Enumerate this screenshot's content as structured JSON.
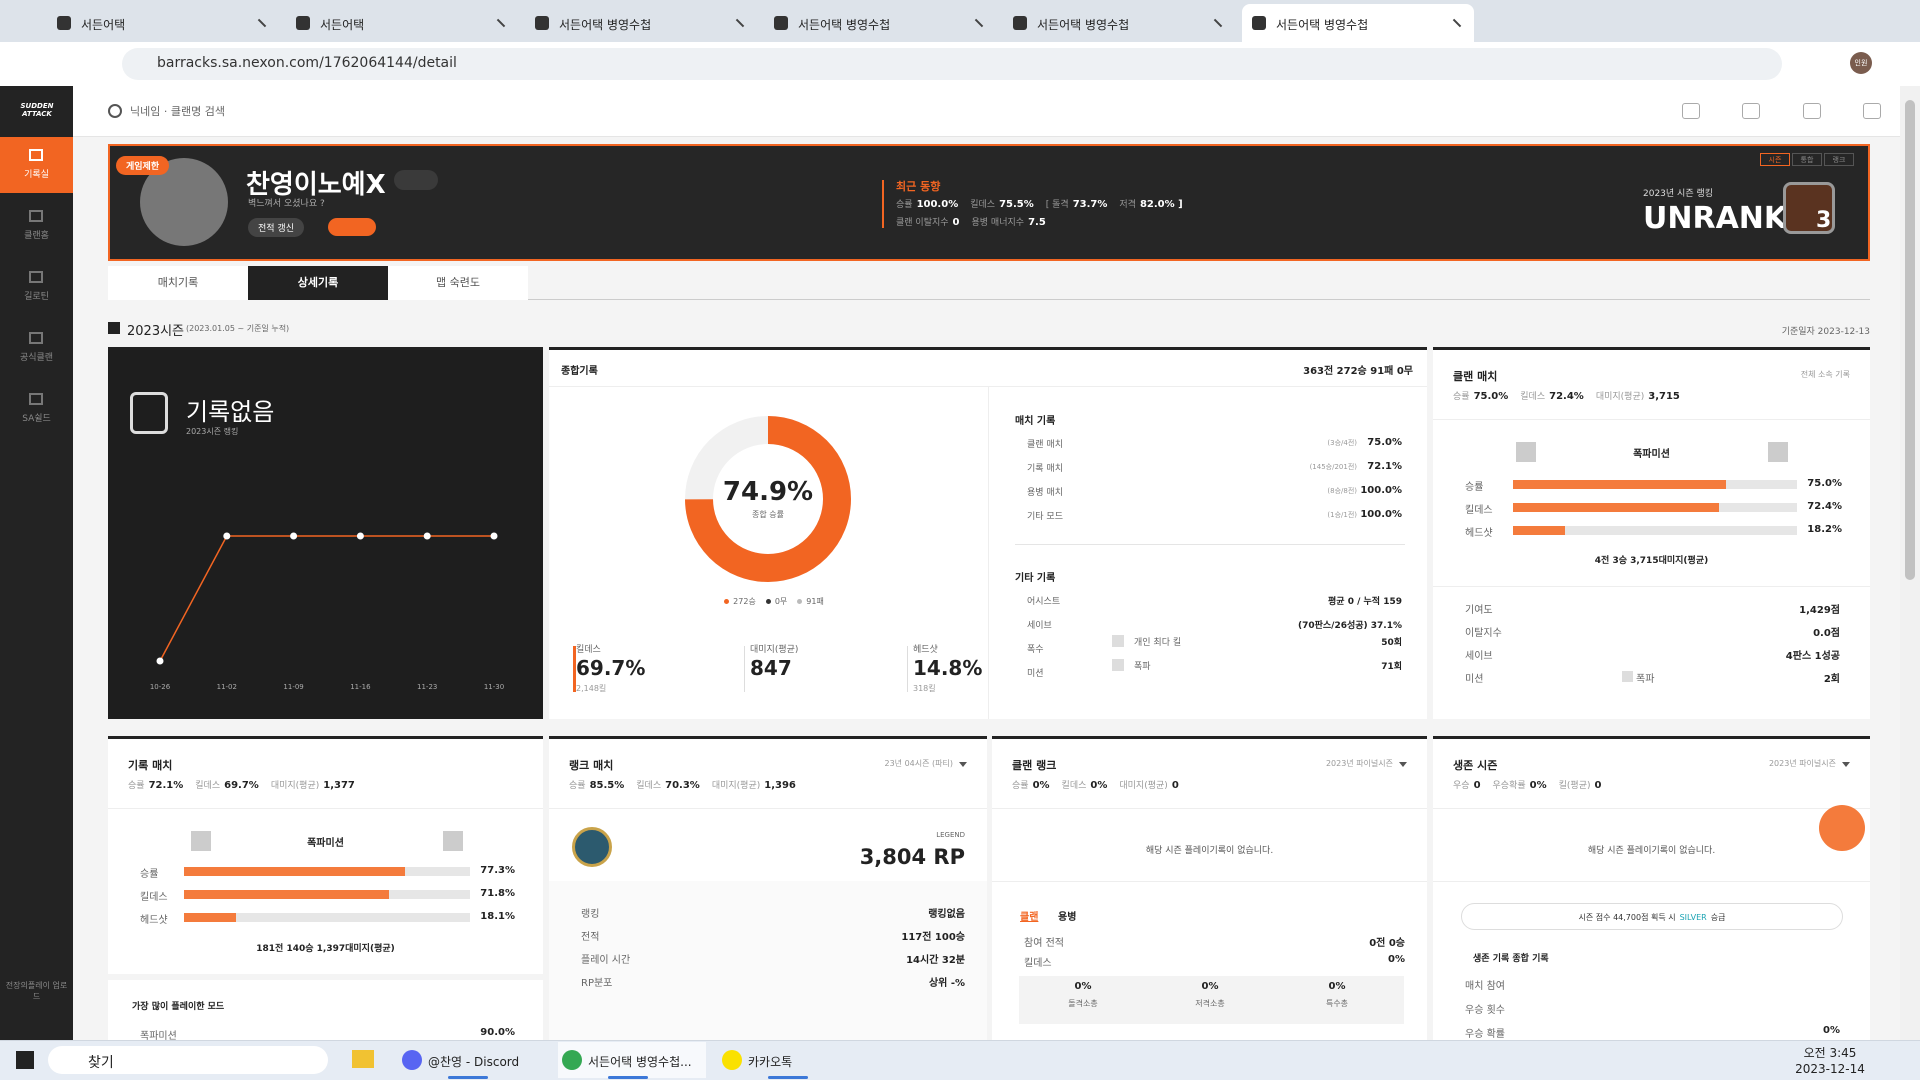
{
  "browser": {
    "tabs": [
      "서든어택",
      "서든어택",
      "서든어택 병영수첩",
      "서든어택 병영수첩",
      "서든어택 병영수첩",
      "서든어택 병영수첩"
    ],
    "url": "barracks.sa.nexon.com/1762064144/detail",
    "profile": "인원"
  },
  "sidebar": {
    "logo": "SUDDEN ATTACK",
    "items": [
      "기록실",
      "클랜홈",
      "길로틴",
      "공식클랜",
      "SA쉴드"
    ],
    "upload": "전장의플레이 업로드"
  },
  "header": {
    "search": "닉네임 · 클랜명 검색"
  },
  "profile": {
    "badge": "게임제한",
    "nickname": "찬영이노예X",
    "status": "벽느껴서 오셨나요 ?",
    "refresh": "전적 갱신",
    "trend": {
      "title": "최근 동향",
      "line1": [
        {
          "label": "승률",
          "value": "100.0%"
        },
        {
          "label": "킬데스",
          "value": "75.5%"
        },
        {
          "label": "[ 돌격",
          "value": "73.7%"
        },
        {
          "label": "저격",
          "value": "82.0% ]"
        }
      ],
      "line2": [
        {
          "label": "클랜 이탈지수",
          "value": "0"
        },
        {
          "label": "용병 매너지수",
          "value": "7.5"
        }
      ]
    },
    "season_tabs": [
      "시즌",
      "통합",
      "랭크"
    ],
    "ranking_label": "2023년 시즌 랭킹",
    "rank": "UNRANK",
    "rank_level": "3"
  },
  "tabs": [
    "매치기록",
    "상세기록",
    "맵 숙련도"
  ],
  "season": {
    "title": "2023시즌",
    "period": "(2023.01.05 ~ 기준일 누적)",
    "as_of": "기준일자 2023-12-13"
  },
  "ranking_card": {
    "title": "기록없음",
    "subtitle": "2023시즌 랭킹",
    "chart": {
      "type": "line",
      "x": [
        "10-26",
        "11-02",
        "11-09",
        "11-16",
        "11-23",
        "11-30"
      ],
      "values": [
        10,
        100,
        100,
        100,
        100,
        100
      ],
      "ylim": [
        10,
        100
      ],
      "color": "#f26522"
    }
  },
  "overall": {
    "title": "종합기록",
    "summary": "363전 272승 91패 0무",
    "win_rate": {
      "value": 74.9,
      "label": "74.9%"
    },
    "win_rate_label": "종합 승률",
    "legend": [
      "272승",
      "0무",
      "91패"
    ],
    "stats": [
      {
        "label": "킬데스",
        "value": "69.7%",
        "sub": "2,148킬"
      },
      {
        "label": "대미지(평균)",
        "value": "847"
      },
      {
        "label": "헤드샷",
        "value": "14.8%",
        "sub": "318킬"
      }
    ],
    "match_title": "매치 기록",
    "match_rows": [
      {
        "label": "클랜 매치",
        "detail": "(3승/4전)",
        "value": "75.0%"
      },
      {
        "label": "기록 매치",
        "detail": "(145승/201전)",
        "value": "72.1%"
      },
      {
        "label": "용병 매치",
        "detail": "(8승/8전)",
        "value": "100.0%"
      },
      {
        "label": "기타 모드",
        "detail": "(1승/1전)",
        "value": "100.0%"
      }
    ],
    "other_title": "기타 기록",
    "other_rows": [
      {
        "label": "어시스트",
        "value": "평균 0 / 누적 159"
      },
      {
        "label": "세이브",
        "value": "(70판스/26성공) 37.1%"
      },
      {
        "label": "폭수",
        "detail": "개인 최다 킬",
        "value": "50회"
      },
      {
        "label": "미션",
        "detail": "폭파",
        "value": "71회"
      }
    ]
  },
  "clan_match": {
    "title": "클랜 매치",
    "scope": "전체 소속 기록",
    "stats": [
      {
        "label": "승률",
        "value": "75.0%"
      },
      {
        "label": "킬데스",
        "value": "72.4%"
      },
      {
        "label": "대미지(평균)",
        "value": "3,715"
      }
    ],
    "mode": "폭파미션",
    "bars": [
      {
        "label": "승률",
        "value": 75.0,
        "value_label": "75.0%"
      },
      {
        "label": "킬데스",
        "value": 72.4,
        "value_label": "72.4%"
      },
      {
        "label": "헤드샷",
        "value": 18.2,
        "value_label": "18.2%"
      }
    ],
    "summary": "4전 3승 3,715대미지(평균)",
    "rows": [
      {
        "label": "기여도",
        "value": "1,429점"
      },
      {
        "label": "이탈지수",
        "value": "0.0점"
      },
      {
        "label": "세이브",
        "value": "4판스 1성공"
      },
      {
        "label": "미션",
        "detail": "폭파",
        "value": "2회"
      }
    ]
  },
  "record_match": {
    "title": "기록 매치",
    "stats": [
      {
        "label": "승률",
        "value": "72.1%"
      },
      {
        "label": "킬데스",
        "value": "69.7%"
      },
      {
        "label": "대미지(평균)",
        "value": "1,377"
      }
    ],
    "mode": "폭파미션",
    "bars": [
      {
        "label": "승률",
        "value": 77.3,
        "value_label": "77.3%"
      },
      {
        "label": "킬데스",
        "value": 71.8,
        "value_label": "71.8%"
      },
      {
        "label": "헤드샷",
        "value": 18.1,
        "value_label": "18.1%"
      }
    ],
    "summary": "181전 140승 1,397대미지(평균)",
    "most_played_title": "가장 많이 플레이한 모드",
    "most_played": [
      {
        "label": "폭파미션",
        "value": "90.0%"
      }
    ]
  },
  "rank_match": {
    "title": "랭크 매치",
    "season": "23년 04시즌 (파티)",
    "stats": [
      {
        "label": "승률",
        "value": "85.5%"
      },
      {
        "label": "킬데스",
        "value": "70.3%"
      },
      {
        "label": "대미지(평균)",
        "value": "1,396"
      }
    ],
    "tier": "LEGEND",
    "rp": "3,804 RP",
    "rows": [
      {
        "label": "랭킹",
        "value": "랭킹없음"
      },
      {
        "label": "전적",
        "value": "117전 100승"
      },
      {
        "label": "플레이 시간",
        "value": "14시간 32분"
      },
      {
        "label": "RP분포",
        "value": "상위 -%"
      }
    ]
  },
  "clan_rank": {
    "title": "클랜 랭크",
    "season": "2023년 파이널시즌",
    "stats": [
      {
        "label": "승률",
        "value": "0%"
      },
      {
        "label": "킬데스",
        "value": "0%"
      },
      {
        "label": "대미지(평균)",
        "value": "0"
      }
    ],
    "empty": "해당 시즌 플레이기록이 없습니다.",
    "tabs": [
      "클랜",
      "용병"
    ],
    "rows": [
      {
        "label": "참여 전적",
        "value": "0전 0승"
      },
      {
        "label": "킬데스",
        "value": "0%"
      }
    ],
    "weapons": [
      {
        "value": "0%",
        "label": "돌격소총"
      },
      {
        "value": "0%",
        "label": "저격소총"
      },
      {
        "value": "0%",
        "label": "특수총"
      }
    ]
  },
  "survival": {
    "title": "생존 시즌",
    "season": "2023년 파이널시즌",
    "stats": [
      {
        "label": "우승",
        "value": "0"
      },
      {
        "label": "우승확률",
        "value": "0%"
      },
      {
        "label": "킬(평균)",
        "value": "0"
      }
    ],
    "empty": "해당 시즌 플레이기록이 없습니다.",
    "promotion": [
      "시즌 점수 44,700점 획득 시",
      "SILVER",
      "승급"
    ],
    "summary_title": "생존 기록 종합 기록",
    "rows": [
      {
        "label": "매치 참여"
      },
      {
        "label": "우승 횟수"
      },
      {
        "label": "우승 확률",
        "value": "0%"
      }
    ]
  },
  "taskbar": {
    "search": "찾기",
    "apps": [
      "@찬영 - Discord",
      "서든어택 병영수첩...",
      "카카오톡"
    ],
    "time": "오전 3:45",
    "date": "2023-12-14"
  }
}
